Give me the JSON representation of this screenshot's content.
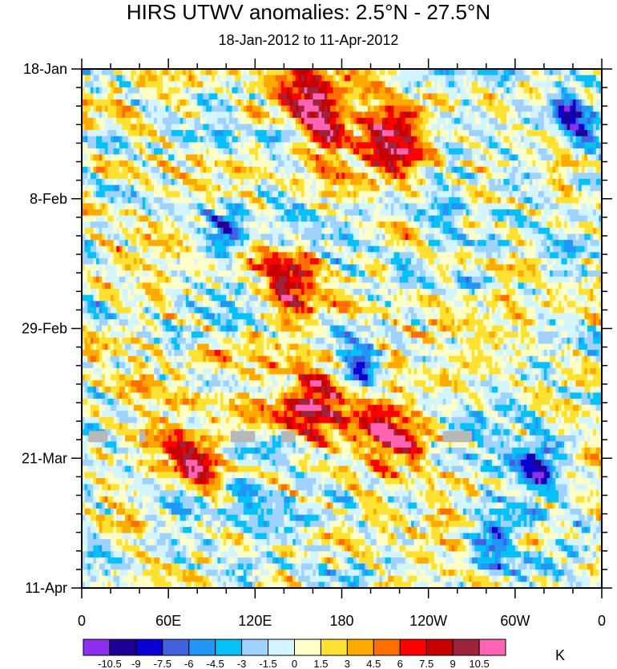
{
  "chart_data": {
    "type": "heatmap",
    "title": "HIRS UTWV anomalies: 2.5°N - 27.5°N",
    "subtitle": "18-Jan-2012 to 11-Apr-2012",
    "x_tick_labels": [
      "0",
      "60E",
      "120E",
      "180",
      "120W",
      "60W",
      "0"
    ],
    "x_ticks_deg_east": [
      0,
      60,
      120,
      180,
      240,
      300,
      360
    ],
    "xlim_deg_east": [
      0,
      360
    ],
    "y_tick_labels": [
      "18-Jan",
      "8-Feb",
      "29-Feb",
      "21-Mar",
      "11-Apr"
    ],
    "y_ticks_day_offset": [
      0,
      21,
      42,
      63,
      84
    ],
    "ylim_day_offset": [
      0,
      84
    ],
    "colorbar": {
      "unit": "K",
      "levels": [
        "-10.5",
        "-9",
        "-7.5",
        "-6",
        "-4.5",
        "-3",
        "-1.5",
        "0",
        "1.5",
        "3",
        "4.5",
        "6",
        "7.5",
        "9",
        "10.5"
      ],
      "colors": [
        "#8c2ff0",
        "#1e0096",
        "#0a00d2",
        "#4161e1",
        "#2196f5",
        "#05c1f5",
        "#a0d2ff",
        "#d2f5ff",
        "#ffffc8",
        "#ffe132",
        "#ffaa00",
        "#ff6e00",
        "#ff0000",
        "#c80000",
        "#a0233c",
        "#ff64b4"
      ]
    },
    "features": {
      "positive_max": [
        {
          "lon_deg_east": 220,
          "day_offset": 13,
          "anomaly_K": 11
        },
        {
          "lon_deg_east": 165,
          "day_offset": 7,
          "anomaly_K": 11
        },
        {
          "lon_deg_east": 160,
          "day_offset": 55,
          "anomaly_K": 11
        },
        {
          "lon_deg_east": 215,
          "day_offset": 60,
          "anomaly_K": 11
        },
        {
          "lon_deg_east": 80,
          "day_offset": 63,
          "anomaly_K": 9
        },
        {
          "lon_deg_east": 145,
          "day_offset": 36,
          "anomaly_K": 9
        }
      ],
      "negative_max": [
        {
          "lon_deg_east": 340,
          "day_offset": 8,
          "anomaly_K": -9
        },
        {
          "lon_deg_east": 192,
          "day_offset": 49,
          "anomaly_K": -10
        },
        {
          "lon_deg_east": 100,
          "day_offset": 27,
          "anomaly_K": -8
        },
        {
          "lon_deg_east": 315,
          "day_offset": 65,
          "anomaly_K": -8
        },
        {
          "lon_deg_east": 285,
          "day_offset": 78,
          "anomaly_K": -7
        }
      ],
      "missing_data_day_offset": 59.5
    }
  }
}
